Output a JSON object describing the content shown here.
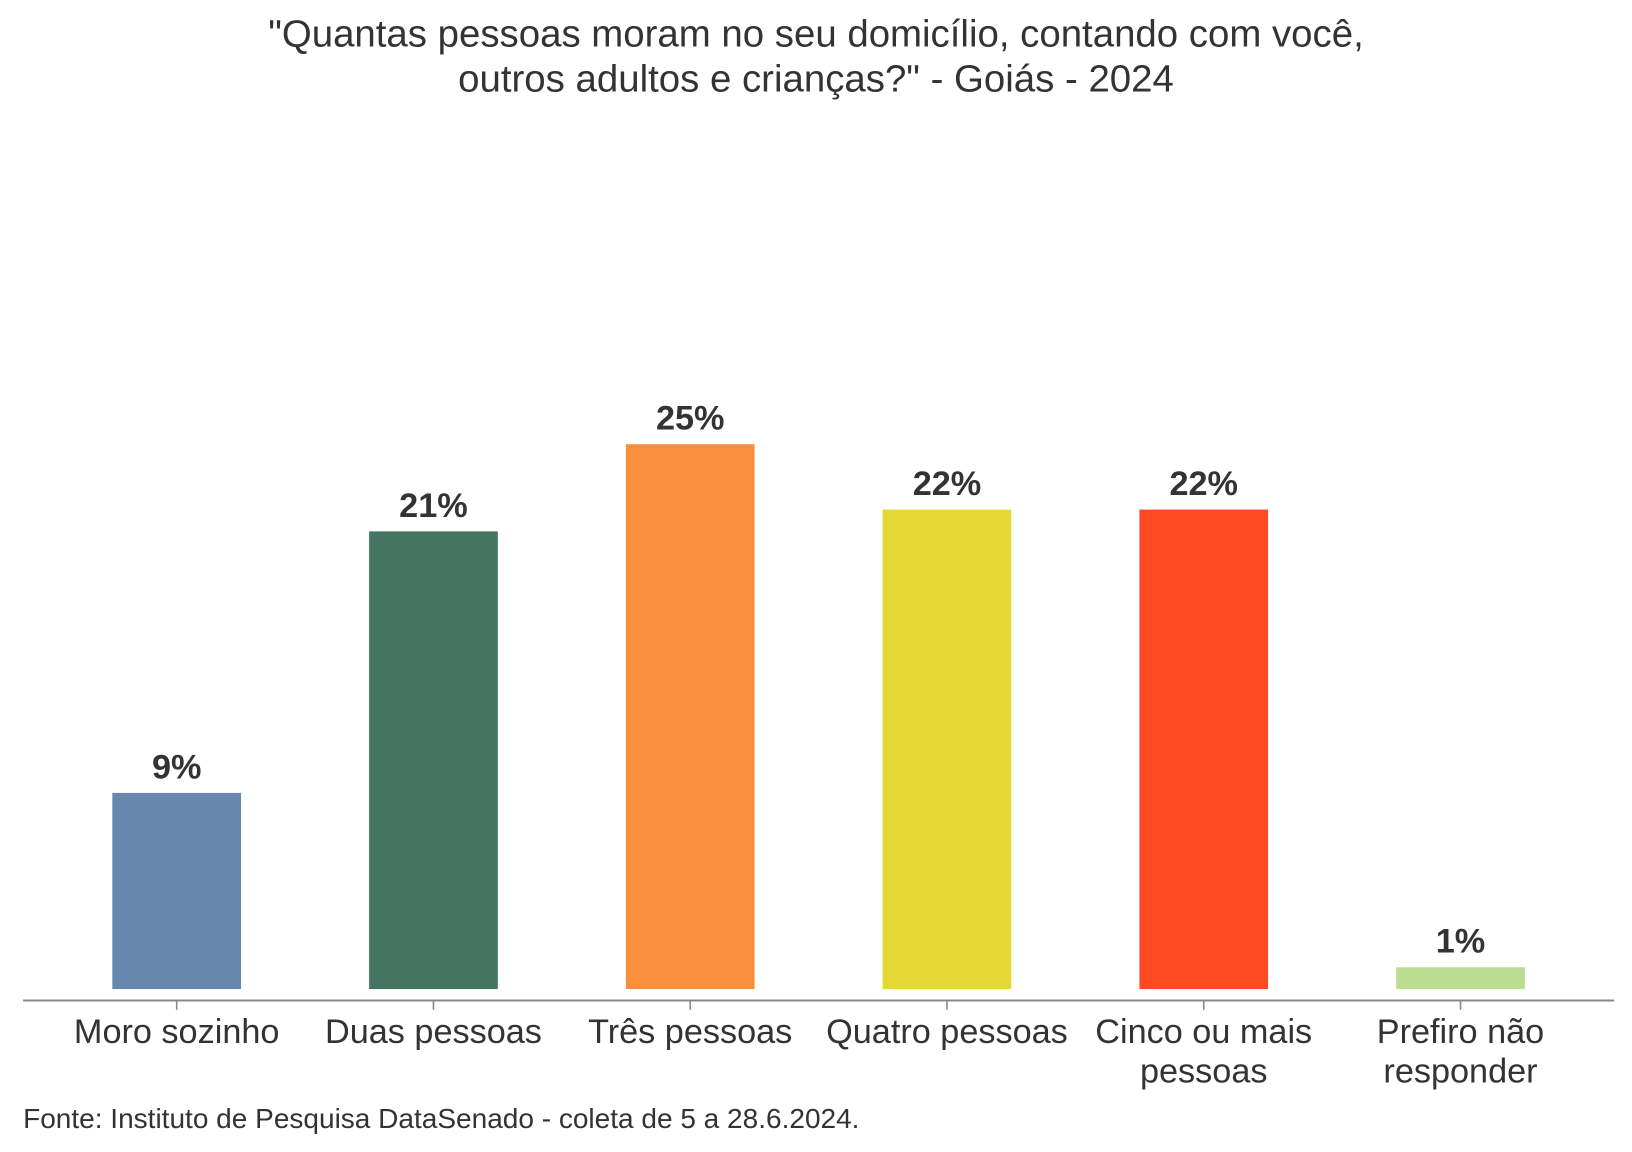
{
  "chart_data": {
    "type": "bar",
    "title_lines": [
      "\"Quantas pessoas moram no seu domicílio, contando com você,",
      "outros adultos e crianças?\" - Goiás - 2024"
    ],
    "categories": [
      [
        "Moro sozinho"
      ],
      [
        "Duas pessoas"
      ],
      [
        "Três pessoas"
      ],
      [
        "Quatro pessoas"
      ],
      [
        "Cinco ou mais",
        "pessoas"
      ],
      [
        "Prefiro não",
        "responder"
      ]
    ],
    "values": [
      9,
      21,
      25,
      22,
      22,
      1
    ],
    "data_labels": [
      "9%",
      "21%",
      "25%",
      "22%",
      "22%",
      "1%"
    ],
    "colors": [
      "#6688AF",
      "#447563",
      "#F98F3D",
      "#E4D835",
      "#FE4A22",
      "#BBDD8F"
    ],
    "xlabel": "",
    "ylabel": "",
    "ylim": [
      0,
      25
    ],
    "grid": false,
    "source": "Fonte: Instituto de Pesquisa DataSenado - coleta de 5 a 28.6.2024."
  }
}
